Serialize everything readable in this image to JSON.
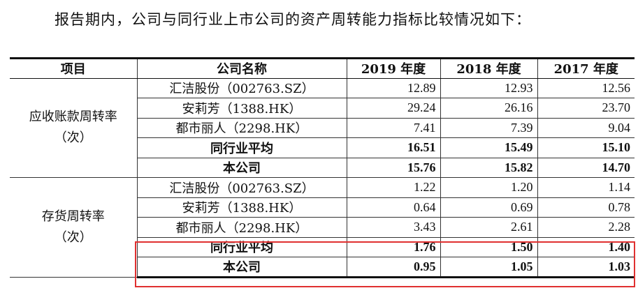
{
  "intro": "报告期内，公司与同行业上市公司的资产周转能力指标比较情况如下：",
  "table": {
    "headers": [
      "项目",
      "公司名称",
      "2019 年度",
      "2018 年度",
      "2017 年度"
    ],
    "groups": [
      {
        "metric_line1": "应收账款周转率",
        "metric_line2": "（次）",
        "rows": [
          {
            "company": "汇洁股份（002763.SZ）",
            "v2019": "12.89",
            "v2018": "12.93",
            "v2017": "12.56"
          },
          {
            "company": "安莉芳（1388.HK）",
            "v2019": "29.24",
            "v2018": "26.16",
            "v2017": "23.70"
          },
          {
            "company": "都市丽人（2298.HK）",
            "v2019": "7.41",
            "v2018": "7.39",
            "v2017": "9.04"
          },
          {
            "company": "同行业平均",
            "v2019": "16.51",
            "v2018": "15.49",
            "v2017": "15.10"
          },
          {
            "company": "本公司",
            "v2019": "15.76",
            "v2018": "15.82",
            "v2017": "14.70"
          }
        ]
      },
      {
        "metric_line1": "存货周转率",
        "metric_line2": "（次）",
        "rows": [
          {
            "company": "汇洁股份（002763.SZ）",
            "v2019": "1.22",
            "v2018": "1.20",
            "v2017": "1.14"
          },
          {
            "company": "安莉芳（1388.HK）",
            "v2019": "0.64",
            "v2018": "0.69",
            "v2017": "0.78"
          },
          {
            "company": "都市丽人（2298.HK）",
            "v2019": "3.43",
            "v2018": "2.61",
            "v2017": "2.28"
          },
          {
            "company": "同行业平均",
            "v2019": "1.76",
            "v2018": "1.50",
            "v2017": "1.40"
          },
          {
            "company": "本公司",
            "v2019": "0.95",
            "v2018": "1.05",
            "v2017": "1.03"
          }
        ]
      }
    ]
  },
  "colors": {
    "highlight_border": "#e03030",
    "rule": "#111111"
  }
}
